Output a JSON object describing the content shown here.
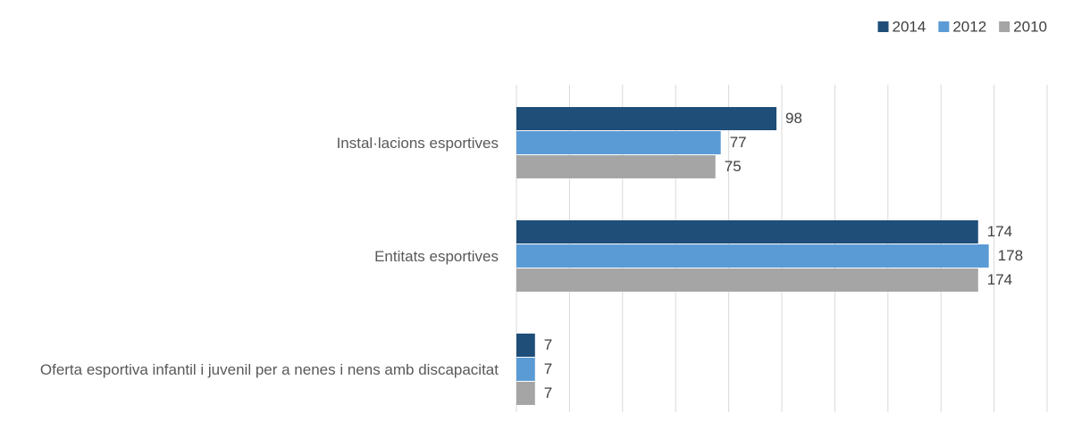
{
  "chart_data": {
    "type": "hbar",
    "categories": [
      "Instal·lacions esportives",
      "Entitats esportives",
      "Oferta esportiva infantil i juvenil per a nenes i nens amb discapacitat"
    ],
    "series": [
      {
        "name": "2014",
        "color": "#1f4e79",
        "values": [
          98,
          174,
          7
        ]
      },
      {
        "name": "2012",
        "color": "#5b9bd5",
        "values": [
          77,
          178,
          7
        ]
      },
      {
        "name": "2010",
        "color": "#a5a5a5",
        "values": [
          75,
          174,
          7
        ]
      }
    ],
    "xlim": [
      0,
      200
    ],
    "xticks": [
      0,
      20,
      40,
      60,
      80,
      100,
      120,
      140,
      160,
      180,
      200
    ],
    "grid": true,
    "legend": "top-right"
  }
}
